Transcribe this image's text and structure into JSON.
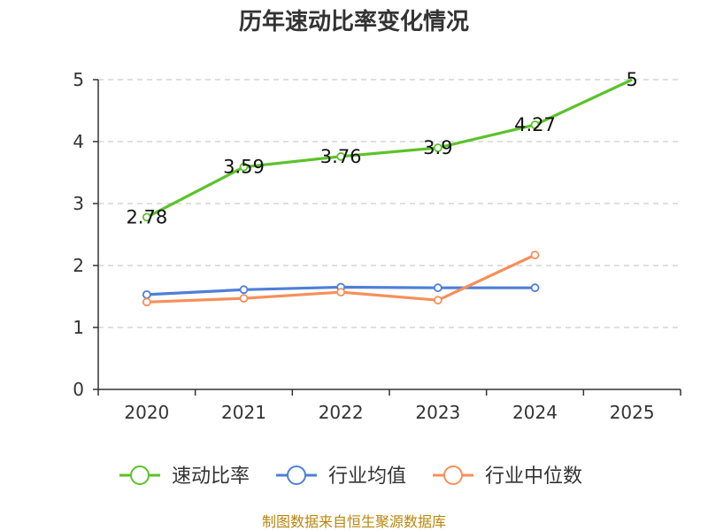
{
  "chart_data": {
    "type": "line",
    "title": "历年速动比率变化情况",
    "xlabel": "",
    "ylabel": "",
    "categories": [
      "2020",
      "2021",
      "2022",
      "2023",
      "2024",
      "2025"
    ],
    "ylim": [
      0,
      5
    ],
    "yticks": [
      0,
      1,
      2,
      3,
      4,
      5
    ],
    "grid": true,
    "legend_position": "bottom",
    "series": [
      {
        "name": "速动比率",
        "color": "#5cc22a",
        "values": [
          2.78,
          3.59,
          3.76,
          3.9,
          4.27,
          5
        ],
        "labels": [
          "2.78",
          "3.59",
          "3.76",
          "3.9",
          "4.27",
          "5"
        ]
      },
      {
        "name": "行业均值",
        "color": "#4f7fd6",
        "values": [
          1.53,
          1.61,
          1.65,
          1.64,
          1.64,
          null
        ]
      },
      {
        "name": "行业中位数",
        "color": "#f5905a",
        "values": [
          1.41,
          1.47,
          1.57,
          1.44,
          2.17,
          null
        ]
      }
    ],
    "source": "制图数据来自恒生聚源数据库"
  }
}
